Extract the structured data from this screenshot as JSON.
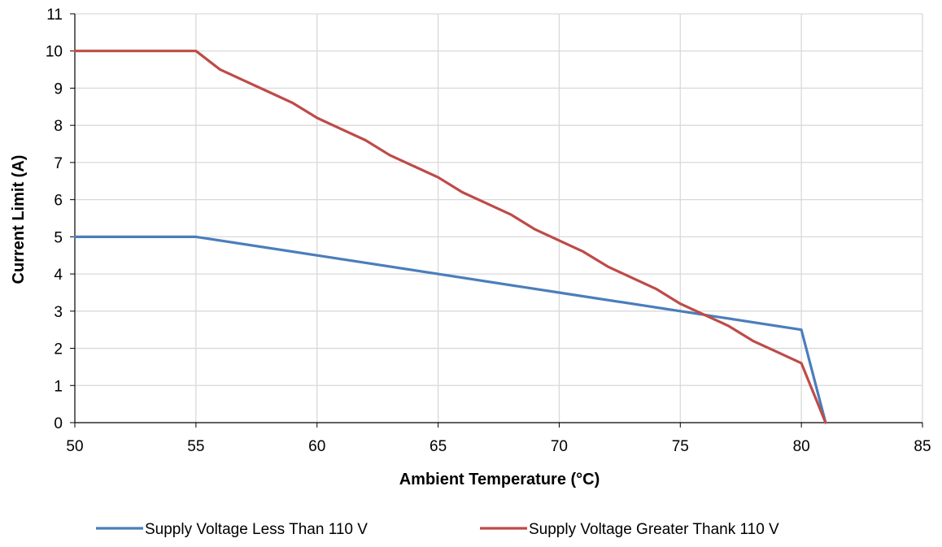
{
  "chart_data": {
    "type": "line",
    "title": "",
    "xlabel": "Ambient Temperature (°C)",
    "ylabel": "Current Limit (A)",
    "xlim": [
      50,
      85
    ],
    "ylim": [
      0,
      11
    ],
    "x_ticks": [
      50,
      55,
      60,
      65,
      70,
      75,
      80,
      85
    ],
    "y_ticks": [
      0,
      1,
      2,
      3,
      4,
      5,
      6,
      7,
      8,
      9,
      10,
      11
    ],
    "grid": true,
    "legend_position": "bottom",
    "series": [
      {
        "name": "Supply Voltage Less Than 110 V",
        "color": "#4a7ebb",
        "points": [
          [
            50,
            5
          ],
          [
            55,
            5
          ],
          [
            60,
            4.5
          ],
          [
            65,
            4.0
          ],
          [
            70,
            3.5
          ],
          [
            75,
            3.0
          ],
          [
            80,
            2.5
          ],
          [
            81,
            0
          ]
        ]
      },
      {
        "name": "Supply Voltage Greater Thank 110 V",
        "color": "#be4b48",
        "points": [
          [
            50,
            10
          ],
          [
            55,
            10
          ],
          [
            56,
            9.5
          ],
          [
            57,
            9.2
          ],
          [
            58,
            8.9
          ],
          [
            59,
            8.6
          ],
          [
            60,
            8.2
          ],
          [
            61,
            7.9
          ],
          [
            62,
            7.6
          ],
          [
            63,
            7.2
          ],
          [
            64,
            6.9
          ],
          [
            65,
            6.6
          ],
          [
            66,
            6.2
          ],
          [
            67,
            5.9
          ],
          [
            68,
            5.6
          ],
          [
            69,
            5.2
          ],
          [
            70,
            4.9
          ],
          [
            71,
            4.6
          ],
          [
            72,
            4.2
          ],
          [
            73,
            3.9
          ],
          [
            74,
            3.6
          ],
          [
            75,
            3.2
          ],
          [
            76,
            2.9
          ],
          [
            77,
            2.6
          ],
          [
            78,
            2.2
          ],
          [
            79,
            1.9
          ],
          [
            80,
            1.6
          ],
          [
            81,
            0
          ]
        ]
      }
    ]
  }
}
